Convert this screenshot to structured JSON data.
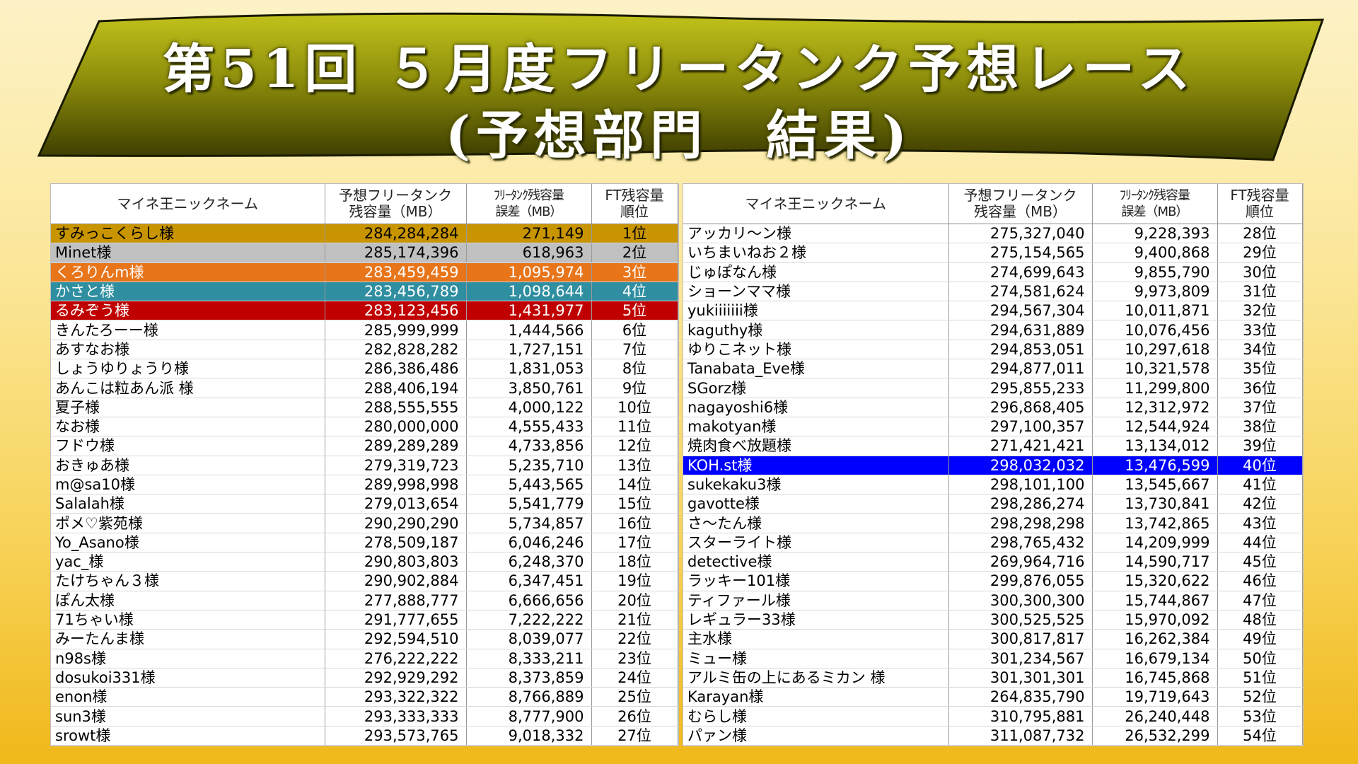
{
  "title": {
    "line1": "第51回 ５月度フリータンク予想レース",
    "line2": "(予想部門　結果)"
  },
  "colors": {
    "rank1": "#c89400",
    "rank2": "#c0c0c0",
    "rank3": "#e8751a",
    "rank4": "#2f8ea0",
    "rank5": "#c00000",
    "highlight": "#0000ff",
    "banner_light": "#b4b416",
    "banner_dark": "#3b3b00"
  },
  "headers": {
    "name": "マイネ王ニックネーム",
    "prediction_l1": "予想フリータンク",
    "prediction_l2": "残容量（MB）",
    "error_l1": "ﾌﾘｰﾀﾝｸ残容量",
    "error_l2": "誤差（MB）",
    "rank_l1": "FT残容量",
    "rank_l2": "順位"
  },
  "left_rows": [
    {
      "name": "すみっこくらし様",
      "prediction": "284,284,284",
      "error": "271,149",
      "rank": "1位",
      "hl": "rank1"
    },
    {
      "name": "Minet様",
      "prediction": "285,174,396",
      "error": "618,963",
      "rank": "2位",
      "hl": "rank2"
    },
    {
      "name": "くろりんm様",
      "prediction": "283,459,459",
      "error": "1,095,974",
      "rank": "3位",
      "hl": "rank3"
    },
    {
      "name": "かさと様",
      "prediction": "283,456,789",
      "error": "1,098,644",
      "rank": "4位",
      "hl": "rank4"
    },
    {
      "name": "るみぞう様",
      "prediction": "283,123,456",
      "error": "1,431,977",
      "rank": "5位",
      "hl": "rank5"
    },
    {
      "name": "きんたろーー様",
      "prediction": "285,999,999",
      "error": "1,444,566",
      "rank": "6位"
    },
    {
      "name": "あすなお様",
      "prediction": "282,828,282",
      "error": "1,727,151",
      "rank": "7位"
    },
    {
      "name": "しょうゆりょうり様",
      "prediction": "286,386,486",
      "error": "1,831,053",
      "rank": "8位"
    },
    {
      "name": "あんこは粒あん派 様",
      "prediction": "288,406,194",
      "error": "3,850,761",
      "rank": "9位"
    },
    {
      "name": "夏子様",
      "prediction": "288,555,555",
      "error": "4,000,122",
      "rank": "10位"
    },
    {
      "name": "なお様",
      "prediction": "280,000,000",
      "error": "4,555,433",
      "rank": "11位"
    },
    {
      "name": "フドウ様",
      "prediction": "289,289,289",
      "error": "4,733,856",
      "rank": "12位"
    },
    {
      "name": "おきゅあ様",
      "prediction": "279,319,723",
      "error": "5,235,710",
      "rank": "13位"
    },
    {
      "name": "m@sa10様",
      "prediction": "289,998,998",
      "error": "5,443,565",
      "rank": "14位"
    },
    {
      "name": "Salalah様",
      "prediction": "279,013,654",
      "error": "5,541,779",
      "rank": "15位"
    },
    {
      "name": "ポメ♡紫苑様",
      "prediction": "290,290,290",
      "error": "5,734,857",
      "rank": "16位"
    },
    {
      "name": "Yo_Asano様",
      "prediction": "278,509,187",
      "error": "6,046,246",
      "rank": "17位"
    },
    {
      "name": "yac_様",
      "prediction": "290,803,803",
      "error": "6,248,370",
      "rank": "18位"
    },
    {
      "name": "たけちゃん３様",
      "prediction": "290,902,884",
      "error": "6,347,451",
      "rank": "19位"
    },
    {
      "name": "ぽん太様",
      "prediction": "277,888,777",
      "error": "6,666,656",
      "rank": "20位"
    },
    {
      "name": "71ちゃい様",
      "prediction": "291,777,655",
      "error": "7,222,222",
      "rank": "21位"
    },
    {
      "name": "みーたんま様",
      "prediction": "292,594,510",
      "error": "8,039,077",
      "rank": "22位"
    },
    {
      "name": "n98s様",
      "prediction": "276,222,222",
      "error": "8,333,211",
      "rank": "23位"
    },
    {
      "name": "dosukoi331様",
      "prediction": "292,929,292",
      "error": "8,373,859",
      "rank": "24位"
    },
    {
      "name": "enon様",
      "prediction": "293,322,322",
      "error": "8,766,889",
      "rank": "25位"
    },
    {
      "name": "sun3様",
      "prediction": "293,333,333",
      "error": "8,777,900",
      "rank": "26位"
    },
    {
      "name": "srowt様",
      "prediction": "293,573,765",
      "error": "9,018,332",
      "rank": "27位"
    }
  ],
  "right_rows": [
    {
      "name": "アッカリ〜ン様",
      "prediction": "275,327,040",
      "error": "9,228,393",
      "rank": "28位"
    },
    {
      "name": "いちまいねお２様",
      "prediction": "275,154,565",
      "error": "9,400,868",
      "rank": "29位"
    },
    {
      "name": "じゅぽなん様",
      "prediction": "274,699,643",
      "error": "9,855,790",
      "rank": "30位"
    },
    {
      "name": "ショーンママ様",
      "prediction": "274,581,624",
      "error": "9,973,809",
      "rank": "31位"
    },
    {
      "name": "yukiiiiiii様",
      "prediction": "294,567,304",
      "error": "10,011,871",
      "rank": "32位"
    },
    {
      "name": "kaguthy様",
      "prediction": "294,631,889",
      "error": "10,076,456",
      "rank": "33位"
    },
    {
      "name": "ゆりこネット様",
      "prediction": "294,853,051",
      "error": "10,297,618",
      "rank": "34位"
    },
    {
      "name": "Tanabata_Eve様",
      "prediction": "294,877,011",
      "error": "10,321,578",
      "rank": "35位"
    },
    {
      "name": "SGorz様",
      "prediction": "295,855,233",
      "error": "11,299,800",
      "rank": "36位"
    },
    {
      "name": "nagayoshi6様",
      "prediction": "296,868,405",
      "error": "12,312,972",
      "rank": "37位"
    },
    {
      "name": "makotyan様",
      "prediction": "297,100,357",
      "error": "12,544,924",
      "rank": "38位"
    },
    {
      "name": "焼肉食べ放題様",
      "prediction": "271,421,421",
      "error": "13,134,012",
      "rank": "39位"
    },
    {
      "name": "KOH.st様",
      "prediction": "298,032,032",
      "error": "13,476,599",
      "rank": "40位",
      "hl": "highlight"
    },
    {
      "name": "sukekaku3様",
      "prediction": "298,101,100",
      "error": "13,545,667",
      "rank": "41位"
    },
    {
      "name": "gavotte様",
      "prediction": "298,286,274",
      "error": "13,730,841",
      "rank": "42位"
    },
    {
      "name": "さ〜たん様",
      "prediction": "298,298,298",
      "error": "13,742,865",
      "rank": "43位"
    },
    {
      "name": "スターライト様",
      "prediction": "298,765,432",
      "error": "14,209,999",
      "rank": "44位"
    },
    {
      "name": "detective様",
      "prediction": "269,964,716",
      "error": "14,590,717",
      "rank": "45位"
    },
    {
      "name": "ラッキー101様",
      "prediction": "299,876,055",
      "error": "15,320,622",
      "rank": "46位"
    },
    {
      "name": "ティファール様",
      "prediction": "300,300,300",
      "error": "15,744,867",
      "rank": "47位"
    },
    {
      "name": "レギュラー33様",
      "prediction": "300,525,525",
      "error": "15,970,092",
      "rank": "48位"
    },
    {
      "name": "主水様",
      "prediction": "300,817,817",
      "error": "16,262,384",
      "rank": "49位"
    },
    {
      "name": "ミュー様",
      "prediction": "301,234,567",
      "error": "16,679,134",
      "rank": "50位"
    },
    {
      "name": "アルミ缶の上にあるミカン 様",
      "prediction": "301,301,301",
      "error": "16,745,868",
      "rank": "51位"
    },
    {
      "name": "Karayan様",
      "prediction": "264,835,790",
      "error": "19,719,643",
      "rank": "52位"
    },
    {
      "name": "むらし様",
      "prediction": "310,795,881",
      "error": "26,240,448",
      "rank": "53位"
    },
    {
      "name": "パァン様",
      "prediction": "311,087,732",
      "error": "26,532,299",
      "rank": "54位"
    }
  ]
}
